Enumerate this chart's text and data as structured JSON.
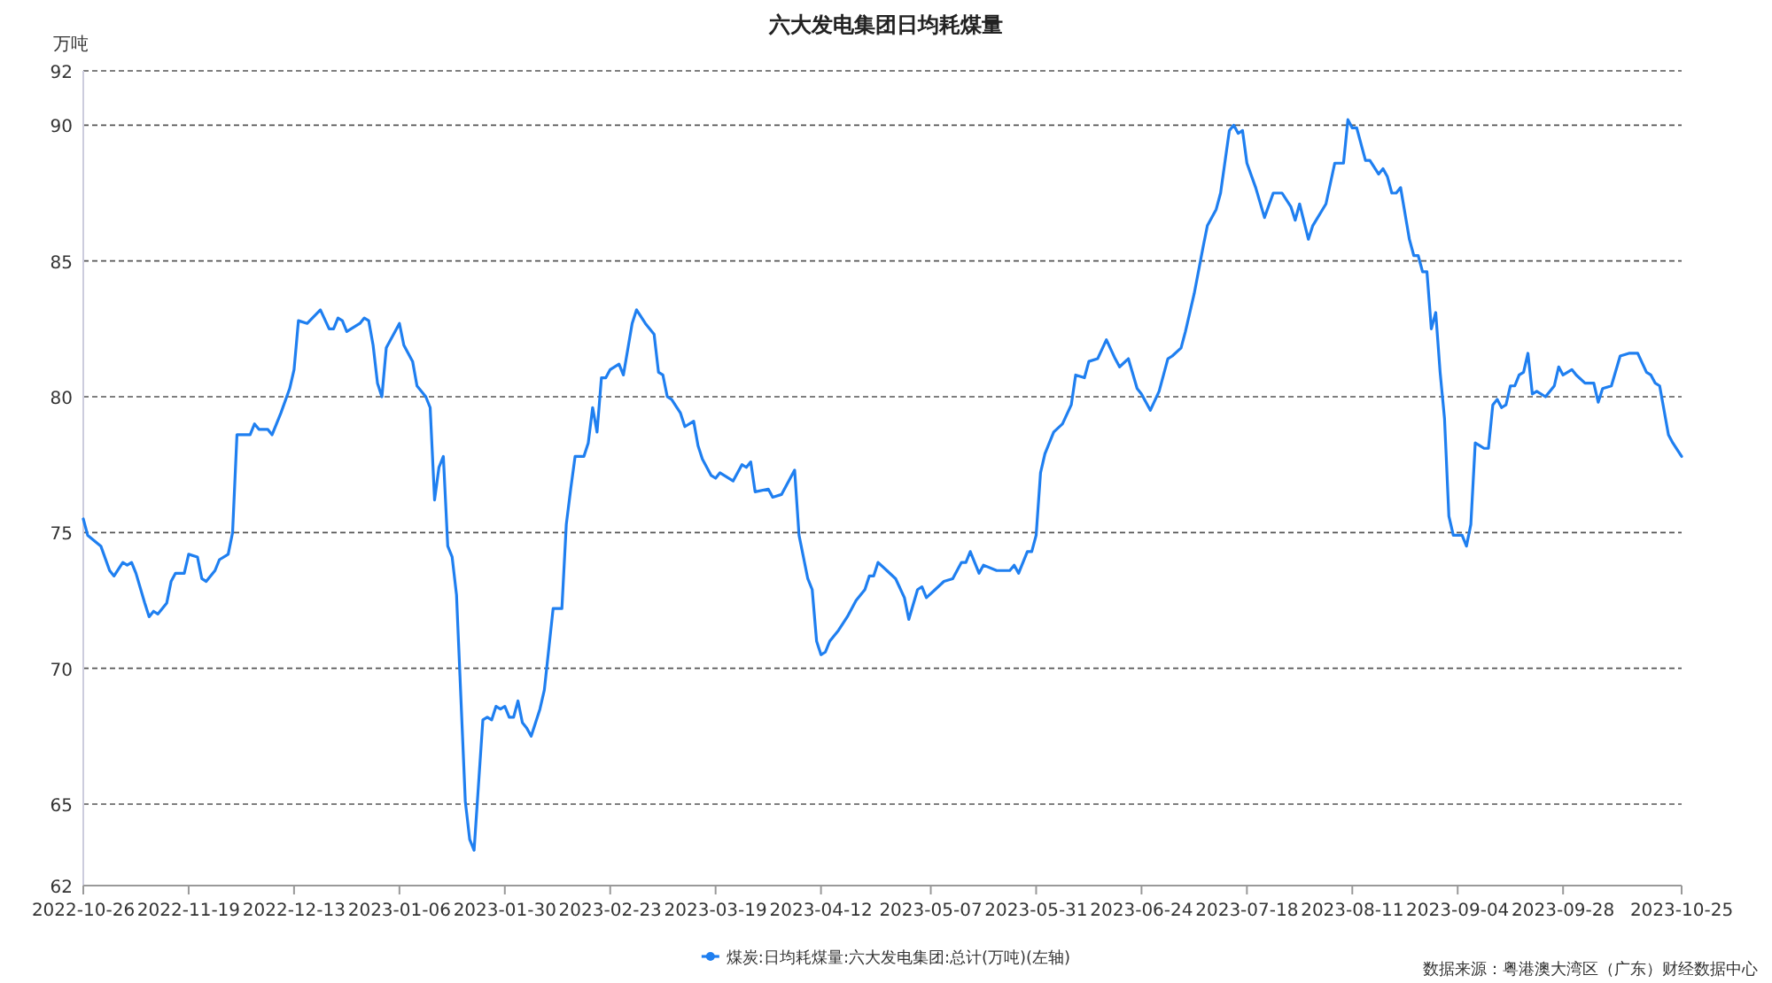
{
  "chart_data": {
    "type": "line",
    "title": "六大发电集团日均耗煤量",
    "ylabel": "万吨",
    "xlim": [
      "2022-10-26",
      "2023-10-25"
    ],
    "xticks": [
      "2022-10-26",
      "2022-11-19",
      "2022-12-13",
      "2023-01-06",
      "2023-01-30",
      "2023-02-23",
      "2023-03-19",
      "2023-04-12",
      "2023-05-07",
      "2023-05-31",
      "2023-06-24",
      "2023-07-18",
      "2023-08-11",
      "2023-09-04",
      "2023-09-28",
      "2023-10-25"
    ],
    "ylim": [
      62,
      92
    ],
    "yticks": [
      62,
      65,
      70,
      75,
      80,
      85,
      90,
      92
    ],
    "grid": "y",
    "legend": "bottom",
    "line_style": "solid",
    "annotations": [
      "数据来源：粤港澳大湾区（广东）财经数据中心"
    ],
    "series": [
      {
        "name": "煤炭:日均耗煤量:六大发电集团:总计(万吨)(左轴)",
        "color": "#1f7ff0",
        "x": [
          "2022-10-26",
          "2022-10-27",
          "2022-10-30",
          "2022-11-01",
          "2022-11-02",
          "2022-11-04",
          "2022-11-05",
          "2022-11-06",
          "2022-11-07",
          "2022-11-09",
          "2022-11-10",
          "2022-11-11",
          "2022-11-12",
          "2022-11-14",
          "2022-11-15",
          "2022-11-16",
          "2022-11-18",
          "2022-11-19",
          "2022-11-21",
          "2022-11-22",
          "2022-11-23",
          "2022-11-25",
          "2022-11-26",
          "2022-11-28",
          "2022-11-29",
          "2022-11-30",
          "2022-12-01",
          "2022-12-03",
          "2022-12-04",
          "2022-12-05",
          "2022-12-07",
          "2022-12-08",
          "2022-12-10",
          "2022-12-12",
          "2022-12-13",
          "2022-12-14",
          "2022-12-16",
          "2022-12-19",
          "2022-12-21",
          "2022-12-22",
          "2022-12-23",
          "2022-12-24",
          "2022-12-25",
          "2022-12-28",
          "2022-12-29",
          "2022-12-30",
          "2022-12-31",
          "2023-01-01",
          "2023-01-02",
          "2023-01-03",
          "2023-01-06",
          "2023-01-07",
          "2023-01-09",
          "2023-01-10",
          "2023-01-12",
          "2023-01-13",
          "2023-01-14",
          "2023-01-15",
          "2023-01-16",
          "2023-01-17",
          "2023-01-18",
          "2023-01-19",
          "2023-01-21",
          "2023-01-22",
          "2023-01-23",
          "2023-01-25",
          "2023-01-26",
          "2023-01-27",
          "2023-01-28",
          "2023-01-29",
          "2023-01-30",
          "2023-01-31",
          "2023-02-01",
          "2023-02-02",
          "2023-02-03",
          "2023-02-04",
          "2023-02-05",
          "2023-02-06",
          "2023-02-07",
          "2023-02-08",
          "2023-02-10",
          "2023-02-12",
          "2023-02-13",
          "2023-02-14",
          "2023-02-15",
          "2023-02-17",
          "2023-02-18",
          "2023-02-19",
          "2023-02-20",
          "2023-02-21",
          "2023-02-22",
          "2023-02-23",
          "2023-02-25",
          "2023-02-26",
          "2023-02-28",
          "2023-03-01",
          "2023-03-03",
          "2023-03-05",
          "2023-03-06",
          "2023-03-07",
          "2023-03-08",
          "2023-03-09",
          "2023-03-11",
          "2023-03-12",
          "2023-03-14",
          "2023-03-15",
          "2023-03-16",
          "2023-03-18",
          "2023-03-19",
          "2023-03-20",
          "2023-03-23",
          "2023-03-25",
          "2023-03-26",
          "2023-03-27",
          "2023-03-28",
          "2023-03-31",
          "2023-04-01",
          "2023-04-03",
          "2023-04-05",
          "2023-04-06",
          "2023-04-07",
          "2023-04-09",
          "2023-04-10",
          "2023-04-11",
          "2023-04-12",
          "2023-04-13",
          "2023-04-14",
          "2023-04-16",
          "2023-04-18",
          "2023-04-20",
          "2023-04-22",
          "2023-04-23",
          "2023-04-24",
          "2023-04-25",
          "2023-04-27",
          "2023-04-29",
          "2023-05-01",
          "2023-05-02",
          "2023-05-04",
          "2023-05-05",
          "2023-05-06",
          "2023-05-08",
          "2023-05-10",
          "2023-05-12",
          "2023-05-14",
          "2023-05-15",
          "2023-05-16",
          "2023-05-18",
          "2023-05-19",
          "2023-05-22",
          "2023-05-25",
          "2023-05-26",
          "2023-05-27",
          "2023-05-29",
          "2023-05-30",
          "2023-05-31",
          "2023-06-01",
          "2023-06-02",
          "2023-06-04",
          "2023-06-06",
          "2023-06-08",
          "2023-06-09",
          "2023-06-11",
          "2023-06-12",
          "2023-06-14",
          "2023-06-16",
          "2023-06-18",
          "2023-06-19",
          "2023-06-21",
          "2023-06-23",
          "2023-06-24",
          "2023-06-26",
          "2023-06-28",
          "2023-06-30",
          "2023-07-01",
          "2023-07-03",
          "2023-07-04",
          "2023-07-06",
          "2023-07-08",
          "2023-07-09",
          "2023-07-11",
          "2023-07-12",
          "2023-07-14",
          "2023-07-15",
          "2023-07-16",
          "2023-07-17",
          "2023-07-18",
          "2023-07-20",
          "2023-07-22",
          "2023-07-24",
          "2023-07-26",
          "2023-07-28",
          "2023-07-29",
          "2023-07-30",
          "2023-08-01",
          "2023-08-02",
          "2023-08-05",
          "2023-08-07",
          "2023-08-08",
          "2023-08-09",
          "2023-08-10",
          "2023-08-11",
          "2023-08-12",
          "2023-08-14",
          "2023-08-15",
          "2023-08-17",
          "2023-08-18",
          "2023-08-19",
          "2023-08-20",
          "2023-08-21",
          "2023-08-22",
          "2023-08-24",
          "2023-08-25",
          "2023-08-26",
          "2023-08-27",
          "2023-08-28",
          "2023-08-29",
          "2023-08-30",
          "2023-08-31",
          "2023-09-01",
          "2023-09-02",
          "2023-09-03",
          "2023-09-05",
          "2023-09-06",
          "2023-09-07",
          "2023-09-08",
          "2023-09-09",
          "2023-09-10",
          "2023-09-11",
          "2023-09-12",
          "2023-09-13",
          "2023-09-14",
          "2023-09-15",
          "2023-09-16",
          "2023-09-17",
          "2023-09-18",
          "2023-09-19",
          "2023-09-20",
          "2023-09-21",
          "2023-09-22",
          "2023-09-24",
          "2023-09-26",
          "2023-09-27",
          "2023-09-28",
          "2023-09-30",
          "2023-10-01",
          "2023-10-03",
          "2023-10-05",
          "2023-10-06",
          "2023-10-07",
          "2023-10-09",
          "2023-10-11",
          "2023-10-13",
          "2023-10-15",
          "2023-10-17",
          "2023-10-18",
          "2023-10-19",
          "2023-10-20",
          "2023-10-22",
          "2023-10-23",
          "2023-10-25"
        ],
        "values": [
          75.5,
          74.9,
          74.5,
          73.6,
          73.4,
          73.9,
          73.8,
          73.9,
          73.5,
          72.4,
          71.9,
          72.1,
          72.0,
          72.4,
          73.2,
          73.5,
          73.5,
          74.2,
          74.1,
          73.3,
          73.2,
          73.6,
          74.0,
          74.2,
          75.0,
          78.6,
          78.6,
          78.6,
          79.0,
          78.8,
          78.8,
          78.6,
          79.4,
          80.3,
          81.0,
          82.8,
          82.7,
          83.2,
          82.5,
          82.5,
          82.9,
          82.8,
          82.4,
          82.7,
          82.9,
          82.8,
          81.9,
          80.5,
          80.0,
          81.8,
          82.7,
          81.9,
          81.3,
          80.4,
          80.0,
          79.6,
          76.2,
          77.4,
          77.8,
          74.5,
          74.1,
          72.7,
          65.1,
          63.7,
          63.3,
          68.1,
          68.2,
          68.1,
          68.6,
          68.5,
          68.6,
          68.2,
          68.2,
          68.8,
          68.0,
          67.8,
          67.5,
          68.0,
          68.5,
          69.2,
          72.2,
          72.2,
          75.3,
          76.6,
          77.8,
          77.8,
          78.3,
          79.6,
          78.7,
          80.7,
          80.7,
          81.0,
          81.2,
          80.8,
          82.7,
          83.2,
          82.7,
          82.3,
          80.9,
          80.8,
          80.0,
          79.9,
          79.4,
          78.9,
          79.1,
          78.2,
          77.7,
          77.1,
          77.0,
          77.2,
          76.9,
          77.5,
          77.4,
          77.6,
          76.5,
          76.6,
          76.3,
          76.4,
          77.0,
          77.3,
          74.9,
          73.3,
          72.9,
          71.0,
          70.5,
          70.6,
          71.0,
          71.4,
          71.9,
          72.5,
          72.9,
          73.4,
          73.4,
          73.9,
          73.6,
          73.3,
          72.6,
          71.8,
          72.9,
          73.0,
          72.6,
          72.9,
          73.2,
          73.3,
          73.9,
          73.9,
          74.3,
          73.5,
          73.8,
          73.6,
          73.6,
          73.8,
          73.5,
          74.3,
          74.3,
          74.9,
          77.2,
          77.9,
          78.7,
          79.0,
          79.7,
          80.8,
          80.7,
          81.3,
          81.4,
          82.1,
          81.4,
          81.1,
          81.4,
          80.3,
          80.1,
          79.5,
          80.2,
          81.4,
          81.5,
          81.8,
          82.4,
          83.8,
          85.5,
          86.3,
          86.9,
          87.5,
          89.8,
          90.0,
          89.7,
          89.8,
          88.6,
          87.7,
          86.6,
          87.5,
          87.5,
          87.0,
          86.5,
          87.1,
          85.8,
          86.3,
          87.1,
          88.6,
          88.6,
          88.6,
          90.2,
          89.9,
          89.9,
          88.7,
          88.7,
          88.2,
          88.4,
          88.1,
          87.5,
          87.5,
          87.7,
          85.8,
          85.2,
          85.2,
          84.6,
          84.6,
          82.5,
          83.1,
          80.9,
          79.2,
          75.6,
          74.9,
          74.9,
          74.5,
          75.3,
          78.3,
          78.2,
          78.1,
          78.1,
          79.7,
          79.9,
          79.6,
          79.7,
          80.4,
          80.4,
          80.8,
          80.9,
          81.6,
          80.1,
          80.2,
          80.0,
          80.4,
          81.1,
          80.8,
          81.0,
          80.8,
          80.5,
          80.5,
          79.8,
          80.3,
          80.4,
          81.5,
          81.6,
          81.6,
          80.9,
          80.8,
          80.5,
          80.4,
          78.6,
          78.3,
          77.8
        ]
      }
    ]
  }
}
